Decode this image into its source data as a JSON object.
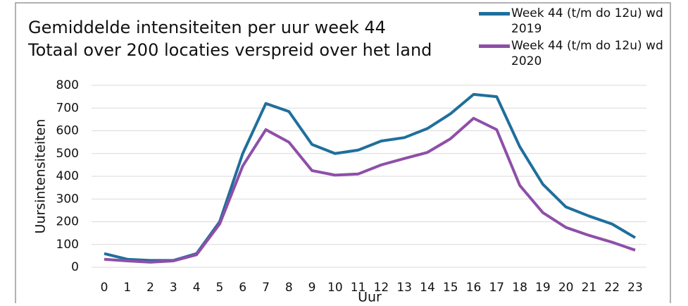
{
  "chart_data": {
    "type": "line",
    "title": "Gemiddelde intensiteiten per uur week 44",
    "subtitle": "Totaal over 200 locaties verspreid over het land",
    "x_label": "Uur",
    "y_label": "Uursintensiteiten",
    "x": [
      0,
      1,
      2,
      3,
      4,
      5,
      6,
      7,
      8,
      9,
      10,
      11,
      12,
      13,
      14,
      15,
      16,
      17,
      18,
      19,
      20,
      21,
      22,
      23
    ],
    "xlim": [
      0,
      23
    ],
    "xticks": [
      0,
      1,
      2,
      3,
      4,
      5,
      6,
      7,
      8,
      9,
      10,
      11,
      12,
      13,
      14,
      15,
      16,
      17,
      18,
      19,
      20,
      21,
      22,
      23
    ],
    "ylim": [
      0,
      800
    ],
    "yticks": [
      0,
      100,
      200,
      300,
      400,
      500,
      600,
      700,
      800
    ],
    "grid": true,
    "legend": "top-right",
    "series": [
      {
        "name": "Week 44 (t/m do 12u) wd 2019",
        "color": "#1f6f9c",
        "values": [
          60,
          35,
          30,
          30,
          60,
          200,
          500,
          720,
          685,
          540,
          500,
          515,
          555,
          570,
          610,
          675,
          760,
          750,
          530,
          365,
          265,
          225,
          190,
          130
        ]
      },
      {
        "name": "Week 44 (t/m do 12u) wd 2020",
        "color": "#8e4fa8",
        "values": [
          35,
          28,
          22,
          28,
          55,
          190,
          445,
          605,
          550,
          425,
          405,
          410,
          450,
          478,
          505,
          565,
          655,
          605,
          360,
          240,
          175,
          140,
          110,
          75
        ]
      }
    ]
  }
}
